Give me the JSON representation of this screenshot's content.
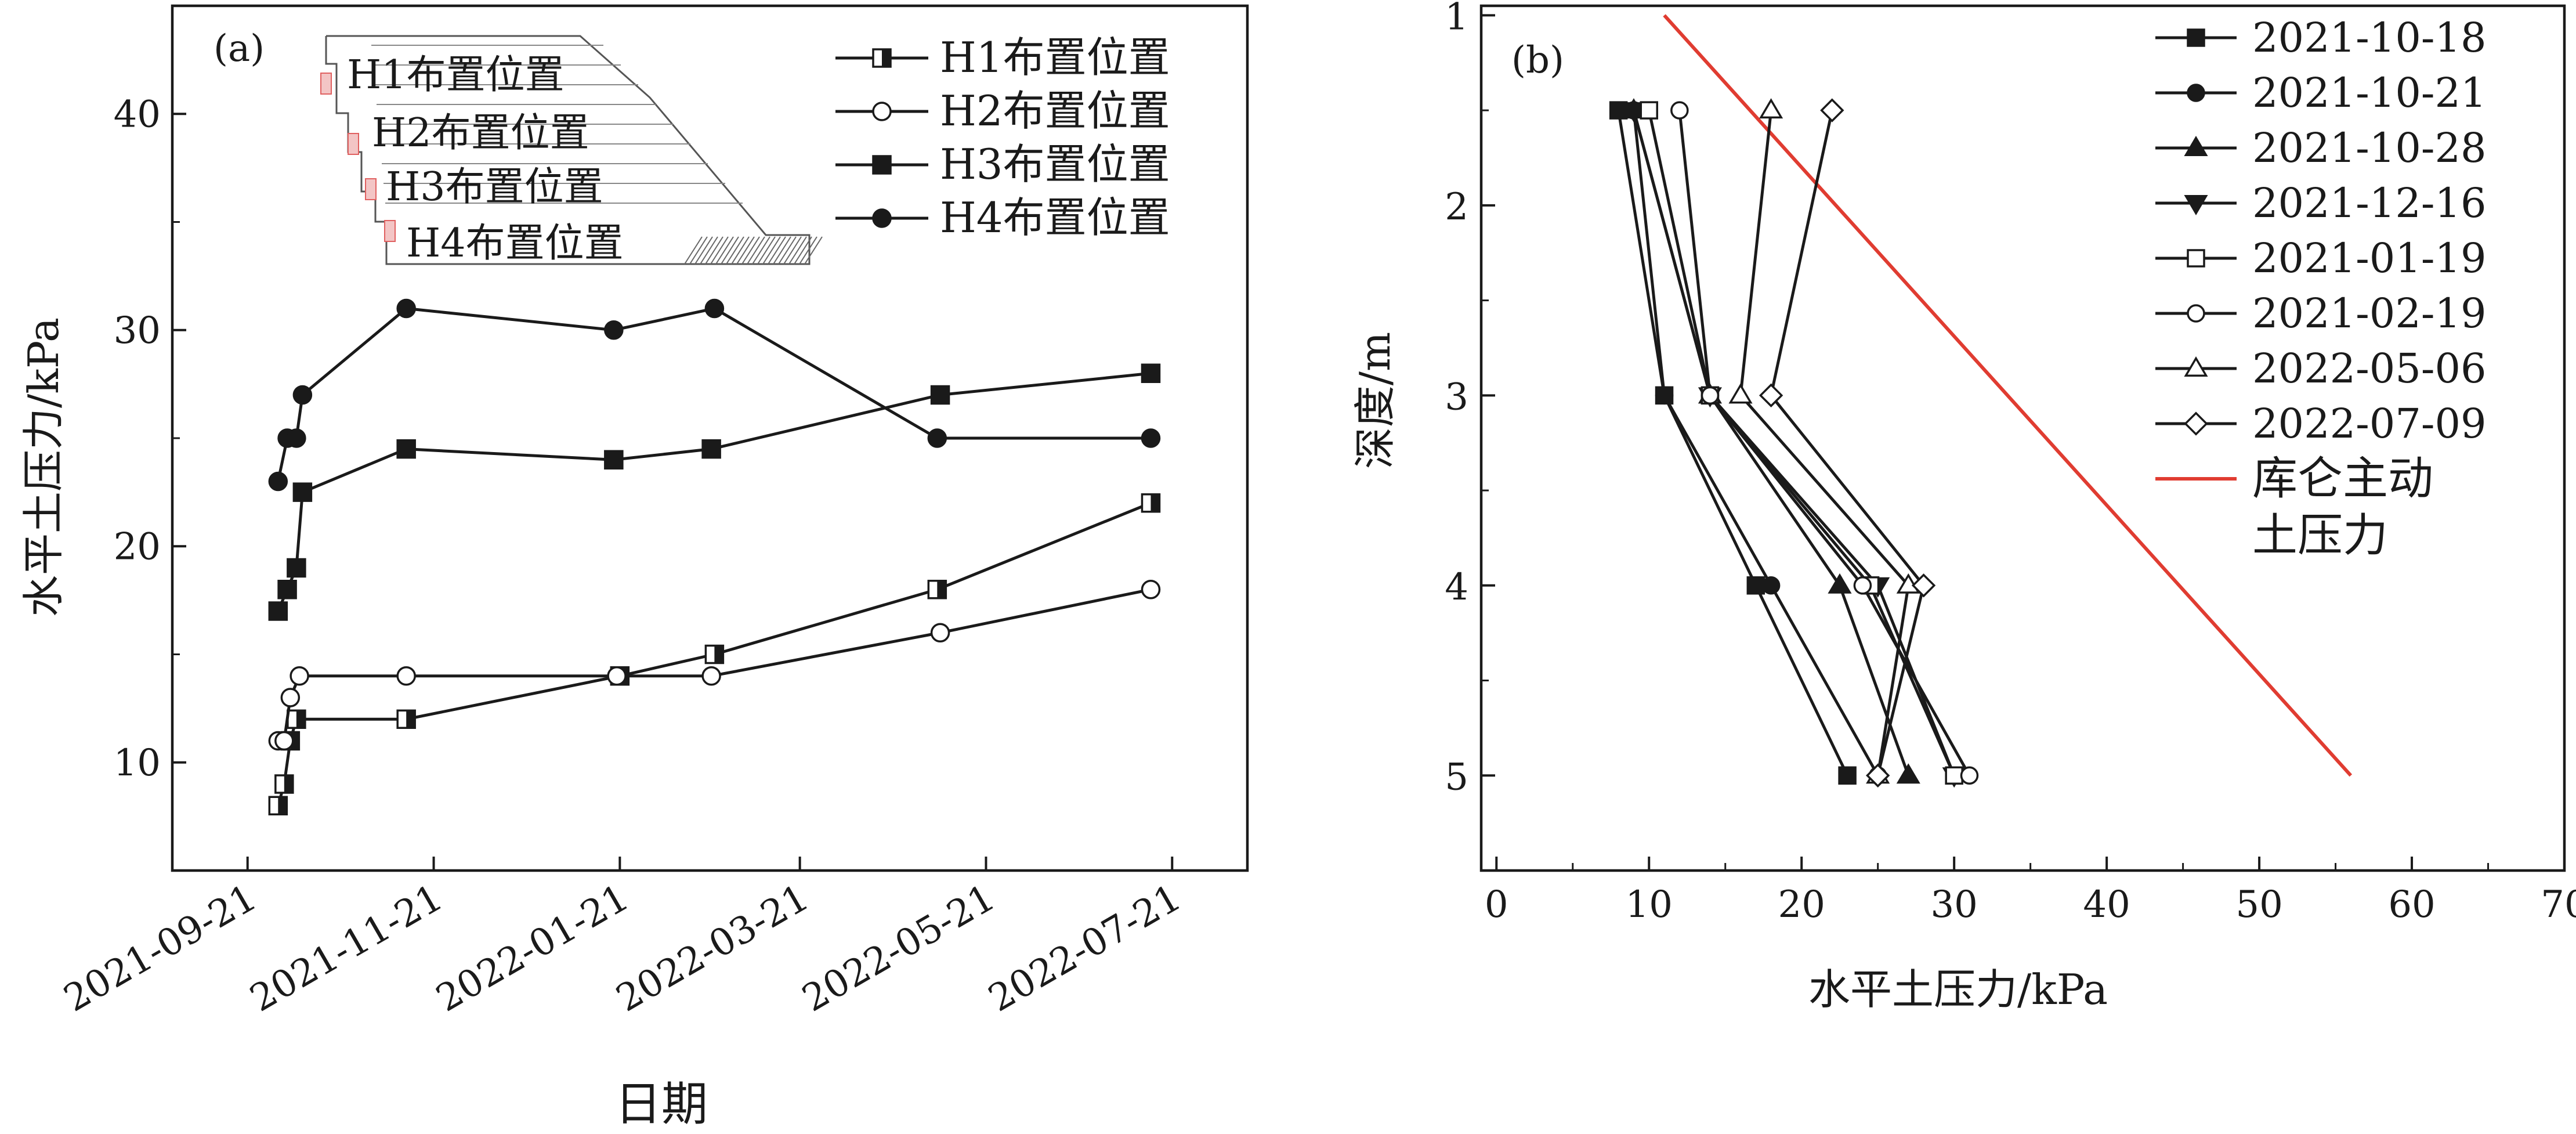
{
  "chart_data": [
    {
      "panel": "(a)",
      "type": "line",
      "xlabel": "日期",
      "ylabel": "水平土压力/kPa",
      "x_ticks": [
        "2021-09-21",
        "2021-11-21",
        "2022-01-21",
        "2022-03-21",
        "2022-05-21",
        "2022-07-21"
      ],
      "x_range": [
        "2021-09-21",
        "2022-07-21"
      ],
      "y_ticks": [
        "10",
        "20",
        "30",
        "40"
      ],
      "ylim": [
        5,
        45
      ],
      "inset_labels": [
        "H1布置位置",
        "H2布置位置",
        "H3布置位置",
        "H4布置位置"
      ],
      "series": [
        {
          "name": "H1布置位置",
          "marker": "half-square",
          "points": [
            [
              "2021-10-01",
              8
            ],
            [
              "2021-10-03",
              9
            ],
            [
              "2021-10-05",
              11
            ],
            [
              "2021-10-07",
              12
            ],
            [
              "2021-11-12",
              12
            ],
            [
              "2022-01-21",
              14
            ],
            [
              "2022-02-21",
              15
            ],
            [
              "2022-05-05",
              18
            ],
            [
              "2022-07-14",
              22
            ]
          ]
        },
        {
          "name": "H2布置位置",
          "marker": "open-circle",
          "points": [
            [
              "2021-10-01",
              11
            ],
            [
              "2021-10-03",
              11
            ],
            [
              "2021-10-05",
              13
            ],
            [
              "2021-10-08",
              14
            ],
            [
              "2021-11-12",
              14
            ],
            [
              "2022-01-20",
              14
            ],
            [
              "2022-02-20",
              14
            ],
            [
              "2022-05-06",
              16
            ],
            [
              "2022-07-14",
              18
            ]
          ]
        },
        {
          "name": "H3布置位置",
          "marker": "filled-square",
          "points": [
            [
              "2021-10-01",
              17
            ],
            [
              "2021-10-04",
              18
            ],
            [
              "2021-10-07",
              19
            ],
            [
              "2021-10-09",
              22.5
            ],
            [
              "2021-11-12",
              24.5
            ],
            [
              "2022-01-19",
              24
            ],
            [
              "2022-02-20",
              24.5
            ],
            [
              "2022-05-06",
              27
            ],
            [
              "2022-07-14",
              28
            ]
          ]
        },
        {
          "name": "H4布置位置",
          "marker": "filled-circle",
          "points": [
            [
              "2021-10-01",
              23
            ],
            [
              "2021-10-04",
              25
            ],
            [
              "2021-10-07",
              25
            ],
            [
              "2021-10-09",
              27
            ],
            [
              "2021-11-12",
              31
            ],
            [
              "2022-01-19",
              30
            ],
            [
              "2022-02-21",
              31
            ],
            [
              "2022-05-05",
              25
            ],
            [
              "2022-07-14",
              25
            ]
          ]
        }
      ]
    },
    {
      "panel": "(b)",
      "type": "line",
      "xlabel": "水平土压力/kPa",
      "ylabel": "深度/m",
      "xlim": [
        -1,
        70
      ],
      "ylim": [
        0.95,
        5.5
      ],
      "y_inverted": true,
      "x_ticks": [
        "0",
        "10",
        "20",
        "30",
        "40",
        "50",
        "60",
        "70"
      ],
      "y_ticks": [
        "1",
        "2",
        "3",
        "4",
        "5"
      ],
      "depths": [
        1.5,
        3,
        4,
        5
      ],
      "series": [
        {
          "name": "2021-10-18",
          "marker": "filled-square",
          "values": [
            8,
            11,
            17,
            23
          ]
        },
        {
          "name": "2021-10-21",
          "marker": "filled-circle",
          "values": [
            9,
            11,
            18,
            25
          ]
        },
        {
          "name": "2021-10-28",
          "marker": "filled-triangle",
          "values": [
            9,
            14,
            22.5,
            27
          ]
        },
        {
          "name": "2021-12-16",
          "marker": "filled-triangle-down",
          "values": [
            9,
            14,
            25,
            30
          ]
        },
        {
          "name": "2021-01-19",
          "marker": "open-square",
          "values": [
            10,
            14,
            24.5,
            30
          ]
        },
        {
          "name": "2021-02-19",
          "marker": "open-circle",
          "values": [
            12,
            14,
            24,
            31
          ]
        },
        {
          "name": "2022-05-06",
          "marker": "open-triangle",
          "values": [
            18,
            16,
            27,
            25
          ]
        },
        {
          "name": "2022-07-09",
          "marker": "open-diamond",
          "values": [
            22,
            18,
            28,
            25
          ]
        }
      ],
      "reference_line": {
        "name": "库仑主动\n土压力",
        "color": "#e03c31",
        "points": [
          [
            11,
            1
          ],
          [
            56,
            5
          ]
        ]
      }
    }
  ]
}
